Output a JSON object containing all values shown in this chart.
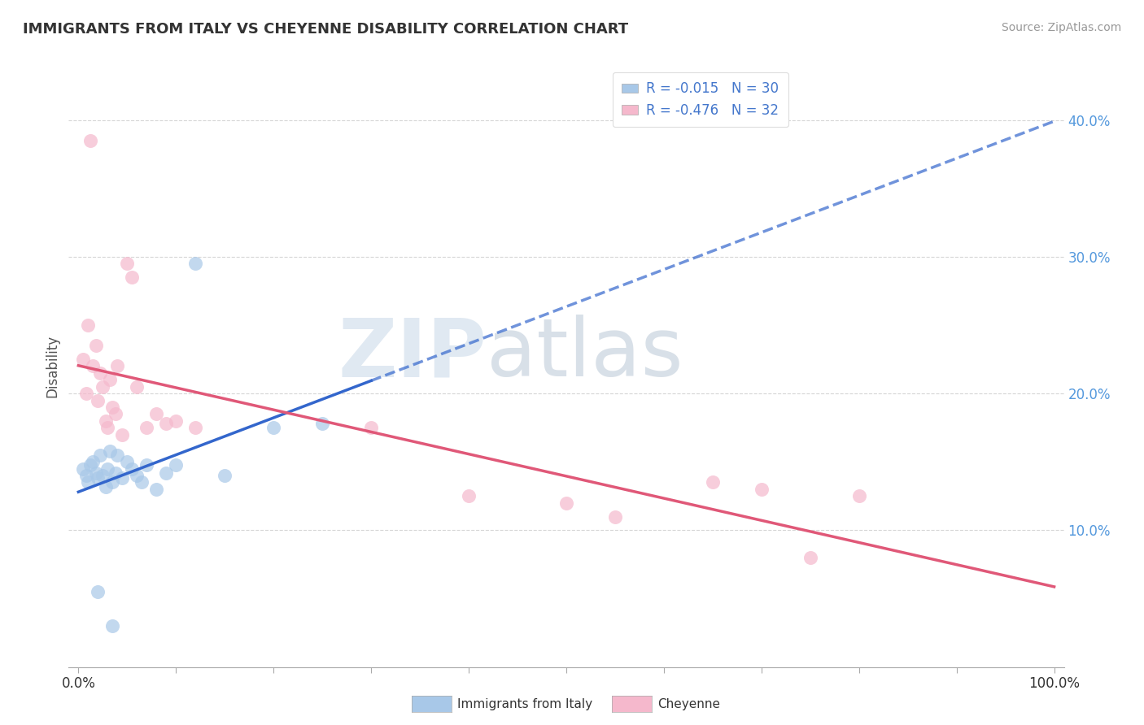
{
  "title": "IMMIGRANTS FROM ITALY VS CHEYENNE DISABILITY CORRELATION CHART",
  "source": "Source: ZipAtlas.com",
  "ylabel": "Disability",
  "legend_label1": "Immigrants from Italy",
  "legend_label2": "Cheyenne",
  "r1": -0.015,
  "n1": 30,
  "r2": -0.476,
  "n2": 32,
  "blue_color": "#a8c8e8",
  "pink_color": "#f5b8cc",
  "blue_line_color": "#3366cc",
  "pink_line_color": "#e05878",
  "blue_scatter": [
    [
      0.5,
      14.5
    ],
    [
      0.8,
      14.0
    ],
    [
      1.0,
      13.5
    ],
    [
      1.2,
      14.8
    ],
    [
      1.5,
      15.0
    ],
    [
      1.8,
      14.2
    ],
    [
      2.0,
      13.8
    ],
    [
      2.2,
      15.5
    ],
    [
      2.5,
      14.0
    ],
    [
      2.8,
      13.2
    ],
    [
      3.0,
      14.5
    ],
    [
      3.2,
      15.8
    ],
    [
      3.5,
      13.5
    ],
    [
      3.8,
      14.2
    ],
    [
      4.0,
      15.5
    ],
    [
      4.5,
      13.8
    ],
    [
      5.0,
      15.0
    ],
    [
      5.5,
      14.5
    ],
    [
      6.0,
      14.0
    ],
    [
      6.5,
      13.5
    ],
    [
      7.0,
      14.8
    ],
    [
      8.0,
      13.0
    ],
    [
      9.0,
      14.2
    ],
    [
      10.0,
      14.8
    ],
    [
      12.0,
      29.5
    ],
    [
      15.0,
      14.0
    ],
    [
      20.0,
      17.5
    ],
    [
      25.0,
      17.8
    ],
    [
      2.0,
      5.5
    ],
    [
      3.5,
      3.0
    ]
  ],
  "pink_scatter": [
    [
      0.5,
      22.5
    ],
    [
      0.8,
      20.0
    ],
    [
      1.0,
      25.0
    ],
    [
      1.2,
      38.5
    ],
    [
      1.5,
      22.0
    ],
    [
      1.8,
      23.5
    ],
    [
      2.0,
      19.5
    ],
    [
      2.2,
      21.5
    ],
    [
      2.5,
      20.5
    ],
    [
      2.8,
      18.0
    ],
    [
      3.0,
      17.5
    ],
    [
      3.2,
      21.0
    ],
    [
      3.5,
      19.0
    ],
    [
      3.8,
      18.5
    ],
    [
      4.0,
      22.0
    ],
    [
      4.5,
      17.0
    ],
    [
      5.0,
      29.5
    ],
    [
      5.5,
      28.5
    ],
    [
      6.0,
      20.5
    ],
    [
      7.0,
      17.5
    ],
    [
      8.0,
      18.5
    ],
    [
      9.0,
      17.8
    ],
    [
      10.0,
      18.0
    ],
    [
      12.0,
      17.5
    ],
    [
      40.0,
      12.5
    ],
    [
      50.0,
      12.0
    ],
    [
      55.0,
      11.0
    ],
    [
      65.0,
      13.5
    ],
    [
      70.0,
      13.0
    ],
    [
      75.0,
      8.0
    ],
    [
      80.0,
      12.5
    ],
    [
      30.0,
      17.5
    ]
  ],
  "xlim": [
    0,
    100
  ],
  "ylim": [
    0,
    44
  ],
  "yticks": [
    10,
    20,
    30,
    40
  ],
  "ytick_labels": [
    "10.0%",
    "20.0%",
    "30.0%",
    "40.0%"
  ],
  "watermark_zip": "ZIP",
  "watermark_atlas": "atlas",
  "background_color": "#ffffff"
}
